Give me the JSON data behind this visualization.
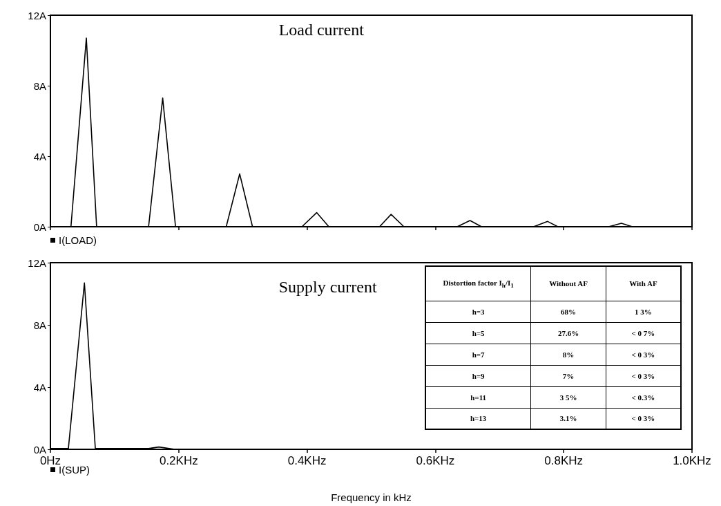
{
  "chart_data": [
    {
      "type": "line",
      "title": "Load current",
      "legend": "bottom left",
      "tick_labels": "y",
      "grid": false,
      "xlim": [
        0,
        1.0
      ],
      "ylim": [
        0,
        12
      ],
      "xticks": [
        {
          "value": 0,
          "label": null
        },
        {
          "value": 0.2,
          "label": null
        },
        {
          "value": 0.4,
          "label": null
        },
        {
          "value": 0.6,
          "label": null
        },
        {
          "value": 0.8,
          "label": null
        },
        {
          "value": 1.0,
          "label": null
        }
      ],
      "yticks": [
        {
          "value": 0,
          "label": "0A"
        },
        {
          "value": 4,
          "label": "4A"
        },
        {
          "value": 8,
          "label": "8A"
        },
        {
          "value": 12,
          "label": "12A"
        }
      ],
      "series": [
        {
          "name": "I(LOAD)",
          "color": "#000000",
          "x": [
            0,
            0.032,
            0.056,
            0.072,
            0.153,
            0.175,
            0.195,
            0.274,
            0.295,
            0.315,
            0.392,
            0.415,
            0.434,
            0.513,
            0.531,
            0.551,
            0.634,
            0.654,
            0.672,
            0.753,
            0.775,
            0.791,
            0.87,
            0.89,
            0.907,
            1.0
          ],
          "values": [
            0,
            0,
            10.7,
            0,
            0,
            7.3,
            0,
            0,
            3.0,
            0,
            0,
            0.8,
            0,
            0,
            0.7,
            0,
            0,
            0.35,
            0,
            0,
            0.3,
            0,
            0,
            0.2,
            0,
            0
          ]
        }
      ]
    },
    {
      "type": "line",
      "title": "Supply current",
      "xlabel": "Frequency in kHz",
      "legend": "bottom left",
      "grid": false,
      "xlim": [
        0,
        1.0
      ],
      "ylim": [
        0,
        12
      ],
      "xticks": [
        {
          "value": 0,
          "label": "0Hz"
        },
        {
          "value": 0.2,
          "label": "0.2KHz"
        },
        {
          "value": 0.4,
          "label": "0.4KHz"
        },
        {
          "value": 0.6,
          "label": "0.6KHz"
        },
        {
          "value": 0.8,
          "label": "0.8KHz"
        },
        {
          "value": 1.0,
          "label": "1.0KHz"
        }
      ],
      "yticks": [
        {
          "value": 0,
          "label": "0A"
        },
        {
          "value": 4,
          "label": "4A"
        },
        {
          "value": 8,
          "label": "8A"
        },
        {
          "value": 12,
          "label": "12A"
        }
      ],
      "annotations": [
        "Distortion factor I$_{h}$/I$_{1}$",
        "Without AF",
        "With AF",
        "h=3",
        "68%",
        "1 3%",
        "h=5",
        "27.6%",
        "< 0 7%",
        "h=7",
        "8%",
        "< 0 3%",
        "h=9",
        "7%",
        "< 0 3%",
        "h=11",
        "3 5%",
        "< 0.3%",
        "h=13",
        "3.1%",
        "< 0 3%"
      ],
      "series": [
        {
          "name": "I(SUP)",
          "color": "#000000",
          "x": [
            0,
            0.028,
            0.053,
            0.07,
            0.153,
            0.169,
            0.194,
            1.0
          ],
          "values": [
            0.05,
            0.05,
            10.7,
            0.05,
            0.05,
            0.15,
            0,
            0
          ]
        }
      ]
    }
  ]
}
